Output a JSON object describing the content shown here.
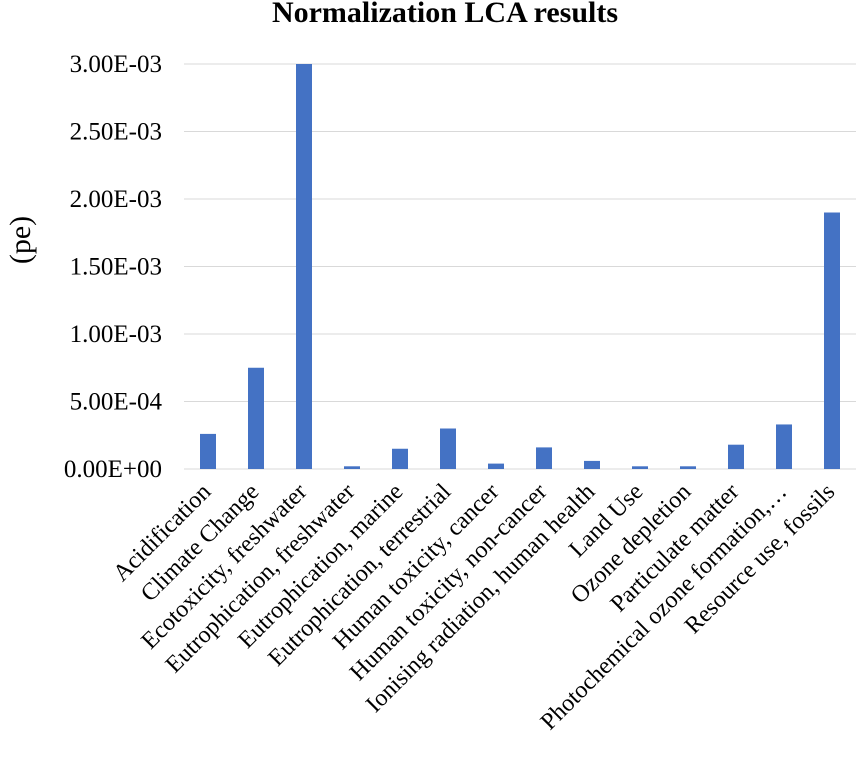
{
  "chart_data": {
    "type": "bar",
    "title": "Normalization  LCA results",
    "xlabel": "",
    "ylabel": "(pe)",
    "ylim": [
      0,
      0.003
    ],
    "yticks": [
      0,
      0.0005,
      0.001,
      0.0015,
      0.002,
      0.0025,
      0.003
    ],
    "ytick_labels": [
      "0.00E+00",
      "5.00E-04",
      "1.00E-03",
      "1.50E-03",
      "2.00E-03",
      "2.50E-03",
      "3.00E-03"
    ],
    "grid": true,
    "legend": "none",
    "bar_color": "#4472c4",
    "categories": [
      "Acidification",
      "Climate Change",
      "Ecotoxicity, freshwater",
      "Eutrophication, freshwater",
      "Eutrophication, marine",
      "Eutrophication, terrestrial",
      "Human toxicity, cancer",
      "Human toxicity, non-cancer",
      "Ionising radiation, human health",
      "Land Use",
      "Ozone depletion",
      "Particulate matter",
      "Photochemical ozone formation,…",
      "Resource use, fossils"
    ],
    "values": [
      0.00026,
      0.00075,
      0.003,
      2e-05,
      0.00015,
      0.0003,
      4e-05,
      0.00016,
      6e-05,
      2e-05,
      2e-05,
      0.00018,
      0.00033,
      0.0019
    ]
  }
}
